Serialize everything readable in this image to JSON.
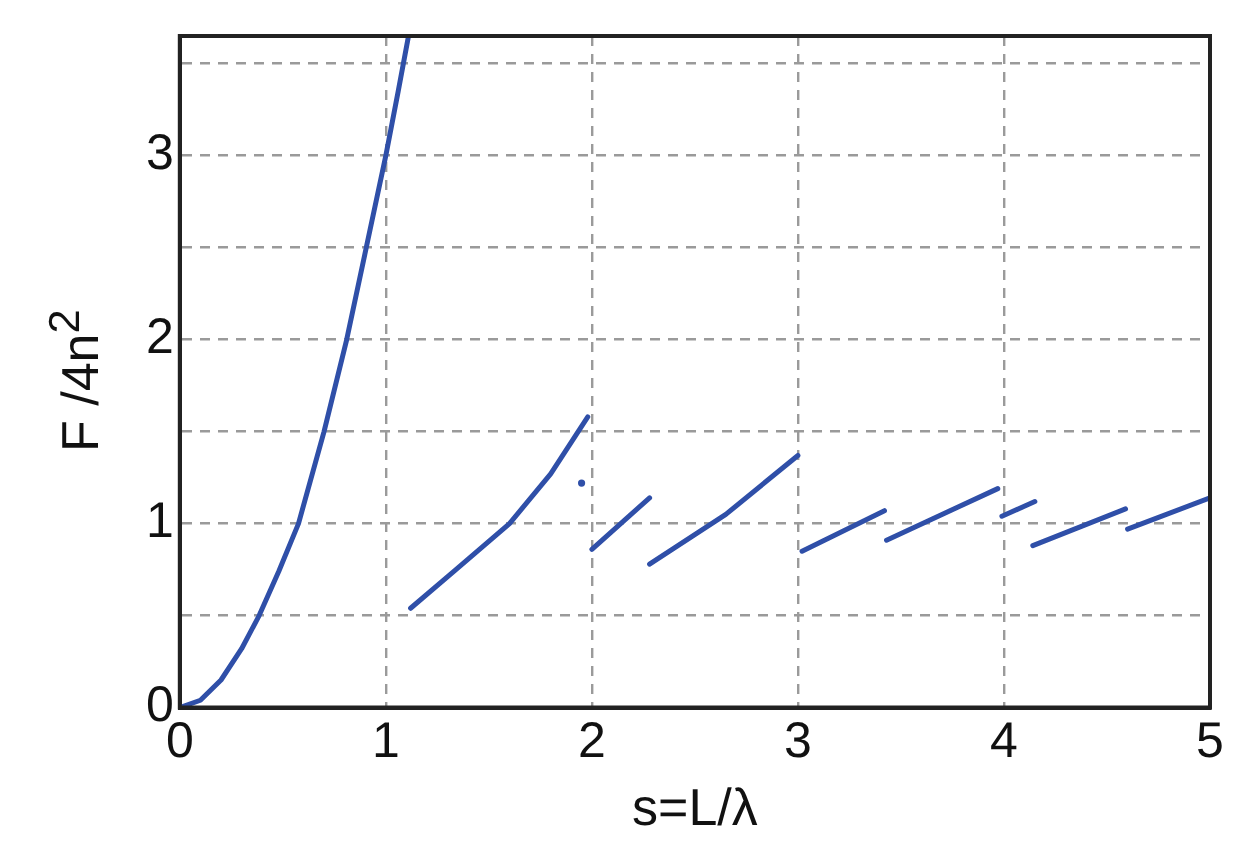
{
  "chart_data": {
    "type": "line",
    "xlabel": "s=L/λ",
    "ylabel": "F /4n$^{2}$",
    "xlim": [
      0,
      5
    ],
    "ylim": [
      0,
      3.65
    ],
    "xticks": [
      0,
      1,
      2,
      3,
      4,
      5
    ],
    "yticks": [
      0,
      {
        "value": 0.5,
        "label": null
      },
      1,
      {
        "value": 1.5,
        "label": null
      },
      2,
      {
        "value": 2.5,
        "label": null
      },
      3,
      {
        "value": 3.5,
        "label": null
      }
    ],
    "grid": true,
    "legend": false,
    "marker": "none",
    "line_style": "solid",
    "series": [
      {
        "color": "#2f4fa8",
        "x": [
          0,
          0.1,
          0.2,
          0.3,
          0.385,
          0.48,
          0.576,
          0.7,
          0.81,
          0.905,
          1.0,
          1.06,
          1.11,
          null,
          1.12,
          1.34,
          1.6,
          1.8,
          1.98,
          null,
          2.0,
          2.28,
          null,
          2.28,
          2.65,
          3.0,
          null,
          3.02,
          3.42,
          null,
          3.43,
          3.97,
          null,
          3.99,
          4.15,
          null,
          4.14,
          4.59,
          null,
          4.6,
          5.0
        ],
        "values": [
          0,
          0.04,
          0.15,
          0.32,
          0.5,
          0.74,
          1.0,
          1.5,
          2.0,
          2.5,
          3.0,
          3.35,
          3.65,
          null,
          0.54,
          0.75,
          1.0,
          1.27,
          1.58,
          null,
          0.86,
          1.14,
          null,
          0.78,
          1.05,
          1.37,
          null,
          0.85,
          1.07,
          null,
          0.91,
          1.19,
          null,
          1.04,
          1.12,
          null,
          0.88,
          1.08,
          null,
          0.97,
          1.14
        ]
      },
      {
        "type": "scatter",
        "marker": "circle",
        "color": "#2f4fa8",
        "x": [
          1.95
        ],
        "values": [
          1.22
        ]
      }
    ]
  }
}
